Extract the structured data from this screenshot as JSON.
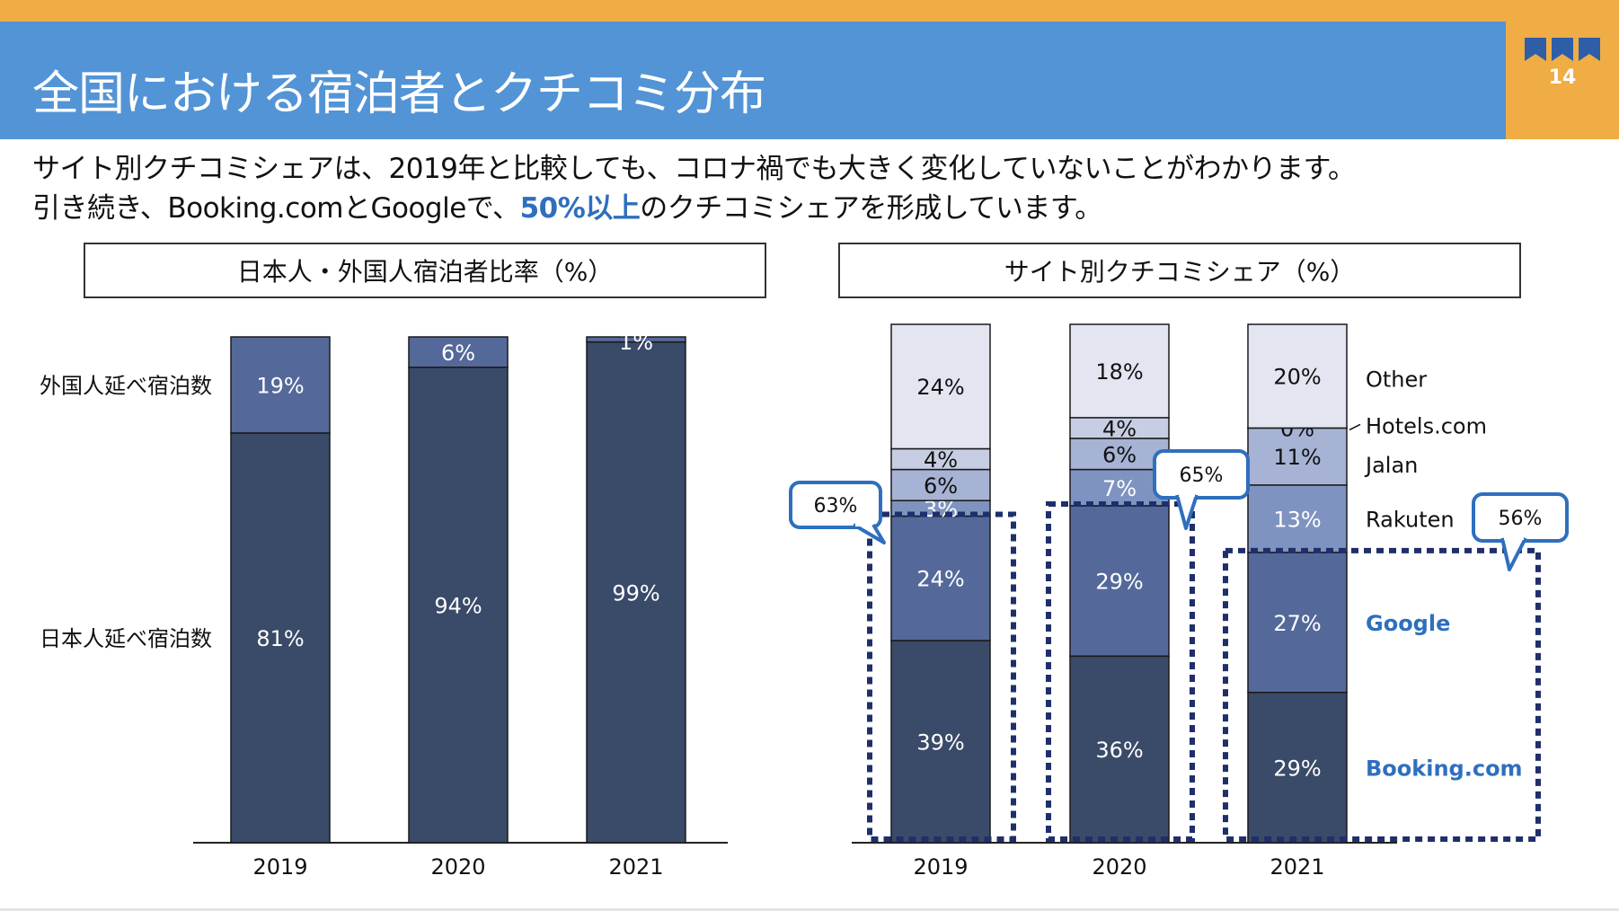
{
  "slide": {
    "title": "全国における宿泊者とクチコミ分布",
    "page_number": "14",
    "subtitle_line1": "サイト別クチコミシェアは、2019年と比較しても、コロナ禍でも大きく変化していないことがわかります。",
    "subtitle_line2_before": "引き続き、Booking.comとGoogleで、",
    "subtitle_line2_highlight": "50%以上",
    "subtitle_line2_after": "のクチコミシェアを形成しています。",
    "colors": {
      "top_bar": "#F0AC45",
      "title_band": "#5294D6",
      "highlight": "#2E6FBE"
    },
    "page_icon": "speech-bubbles-icon"
  },
  "chart_data": [
    {
      "type": "bar",
      "stacked": true,
      "title": "日本人・外国人宿泊者比率（%）",
      "categories": [
        "2019",
        "2020",
        "2021"
      ],
      "series": [
        {
          "name": "日本人延べ宿泊数",
          "values": [
            81,
            94,
            99
          ],
          "labels": [
            "81%",
            "94%",
            "99%"
          ],
          "color": "#3A4A69"
        },
        {
          "name": "外国人延べ宿泊数",
          "values": [
            19,
            6,
            1
          ],
          "labels": [
            "19%",
            "6%",
            "1%"
          ],
          "color": "#54699A"
        }
      ],
      "ylim": [
        0,
        100
      ],
      "legend_position": "left"
    },
    {
      "type": "bar",
      "stacked": true,
      "title": "サイト別クチコミシェア（%）",
      "categories": [
        "2019",
        "2020",
        "2021"
      ],
      "series": [
        {
          "name": "Booking.com",
          "values": [
            39,
            36,
            29
          ],
          "labels": [
            "39%",
            "36%",
            "29%"
          ],
          "color": "#3A4A69",
          "highlight": true
        },
        {
          "name": "Google",
          "values": [
            24,
            29,
            27
          ],
          "labels": [
            "24%",
            "29%",
            "27%"
          ],
          "color": "#54699A",
          "highlight": true
        },
        {
          "name": "Rakuten",
          "values": [
            3,
            7,
            13
          ],
          "labels": [
            "3%",
            "7%",
            "13%"
          ],
          "color": "#7E93C0"
        },
        {
          "name": "Jalan",
          "values": [
            6,
            6,
            11
          ],
          "labels": [
            "6%",
            "6%",
            "11%"
          ],
          "color": "#A6B3D4"
        },
        {
          "name": "Hotels.com",
          "values": [
            4,
            4,
            0
          ],
          "labels": [
            "4%",
            "4%",
            "0%"
          ],
          "color": "#C7CEE4"
        },
        {
          "name": "Other",
          "values": [
            24,
            18,
            20
          ],
          "labels": [
            "24%",
            "18%",
            "20%"
          ],
          "color": "#E3E6F1"
        }
      ],
      "ylim": [
        0,
        100
      ],
      "legend_position": "right",
      "callouts": [
        "63%",
        "65%",
        "56%"
      ]
    }
  ]
}
